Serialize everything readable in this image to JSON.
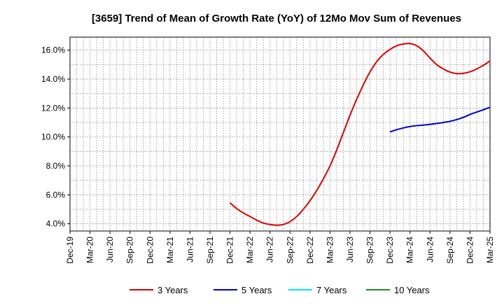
{
  "chart_data": {
    "type": "line",
    "title": "[3659]  Trend of Mean of Growth Rate (YoY) of 12Mo Mov Sum of Revenues",
    "xlabel": "",
    "ylabel": "",
    "x_tick_labels": [
      "Dec-19",
      "Mar-20",
      "Jun-20",
      "Sep-20",
      "Dec-20",
      "Mar-21",
      "Jun-21",
      "Sep-21",
      "Dec-21",
      "Mar-22",
      "Jun-22",
      "Sep-22",
      "Dec-22",
      "Mar-23",
      "Jun-23",
      "Sep-23",
      "Dec-23",
      "Mar-24",
      "Jun-24",
      "Sep-24",
      "Dec-24",
      "Mar-25"
    ],
    "y_ticks": [
      4.0,
      6.0,
      8.0,
      10.0,
      12.0,
      14.0,
      16.0
    ],
    "y_tick_labels": [
      "4.0%",
      "6.0%",
      "8.0%",
      "10.0%",
      "12.0%",
      "14.0%",
      "16.0%"
    ],
    "ylim": [
      3.5,
      16.9
    ],
    "grid": true,
    "legend_position": "bottom",
    "series": [
      {
        "name": "3 Years",
        "color": "#dd0000",
        "points": [
          [
            "Dec-21",
            5.45
          ],
          [
            "Jan-22",
            5.05
          ],
          [
            "Feb-22",
            4.75
          ],
          [
            "Mar-22",
            4.5
          ],
          [
            "Apr-22",
            4.25
          ],
          [
            "May-22",
            4.05
          ],
          [
            "Jun-22",
            3.95
          ],
          [
            "Jul-22",
            3.9
          ],
          [
            "Aug-22",
            3.95
          ],
          [
            "Sep-22",
            4.15
          ],
          [
            "Oct-22",
            4.5
          ],
          [
            "Nov-22",
            5.0
          ],
          [
            "Dec-22",
            5.6
          ],
          [
            "Jan-23",
            6.3
          ],
          [
            "Feb-23",
            7.1
          ],
          [
            "Mar-23",
            8.0
          ],
          [
            "Apr-23",
            9.1
          ],
          [
            "May-23",
            10.3
          ],
          [
            "Jun-23",
            11.5
          ],
          [
            "Jul-23",
            12.6
          ],
          [
            "Aug-23",
            13.6
          ],
          [
            "Sep-23",
            14.5
          ],
          [
            "Oct-23",
            15.2
          ],
          [
            "Nov-23",
            15.7
          ],
          [
            "Dec-23",
            16.05
          ],
          [
            "Jan-24",
            16.3
          ],
          [
            "Feb-24",
            16.42
          ],
          [
            "Mar-24",
            16.45
          ],
          [
            "Apr-24",
            16.3
          ],
          [
            "May-24",
            15.95
          ],
          [
            "Jun-24",
            15.45
          ],
          [
            "Jul-24",
            15.0
          ],
          [
            "Aug-24",
            14.7
          ],
          [
            "Sep-24",
            14.48
          ],
          [
            "Oct-24",
            14.38
          ],
          [
            "Nov-24",
            14.4
          ],
          [
            "Dec-24",
            14.5
          ],
          [
            "Jan-25",
            14.7
          ],
          [
            "Feb-25",
            14.95
          ],
          [
            "Mar-25",
            15.25
          ]
        ]
      },
      {
        "name": "5 Years",
        "color": "#0000cc",
        "points": [
          [
            "Dec-23",
            10.35
          ],
          [
            "Jan-24",
            10.5
          ],
          [
            "Feb-24",
            10.62
          ],
          [
            "Mar-24",
            10.72
          ],
          [
            "Apr-24",
            10.78
          ],
          [
            "May-24",
            10.82
          ],
          [
            "Jun-24",
            10.87
          ],
          [
            "Jul-24",
            10.93
          ],
          [
            "Aug-24",
            11.0
          ],
          [
            "Sep-24",
            11.08
          ],
          [
            "Oct-24",
            11.2
          ],
          [
            "Nov-24",
            11.35
          ],
          [
            "Dec-24",
            11.55
          ],
          [
            "Jan-25",
            11.72
          ],
          [
            "Feb-25",
            11.88
          ],
          [
            "Mar-25",
            12.05
          ]
        ]
      },
      {
        "name": "7 Years",
        "color": "#00e5ee",
        "points": []
      },
      {
        "name": "10 Years",
        "color": "#228b22",
        "points": []
      }
    ]
  }
}
